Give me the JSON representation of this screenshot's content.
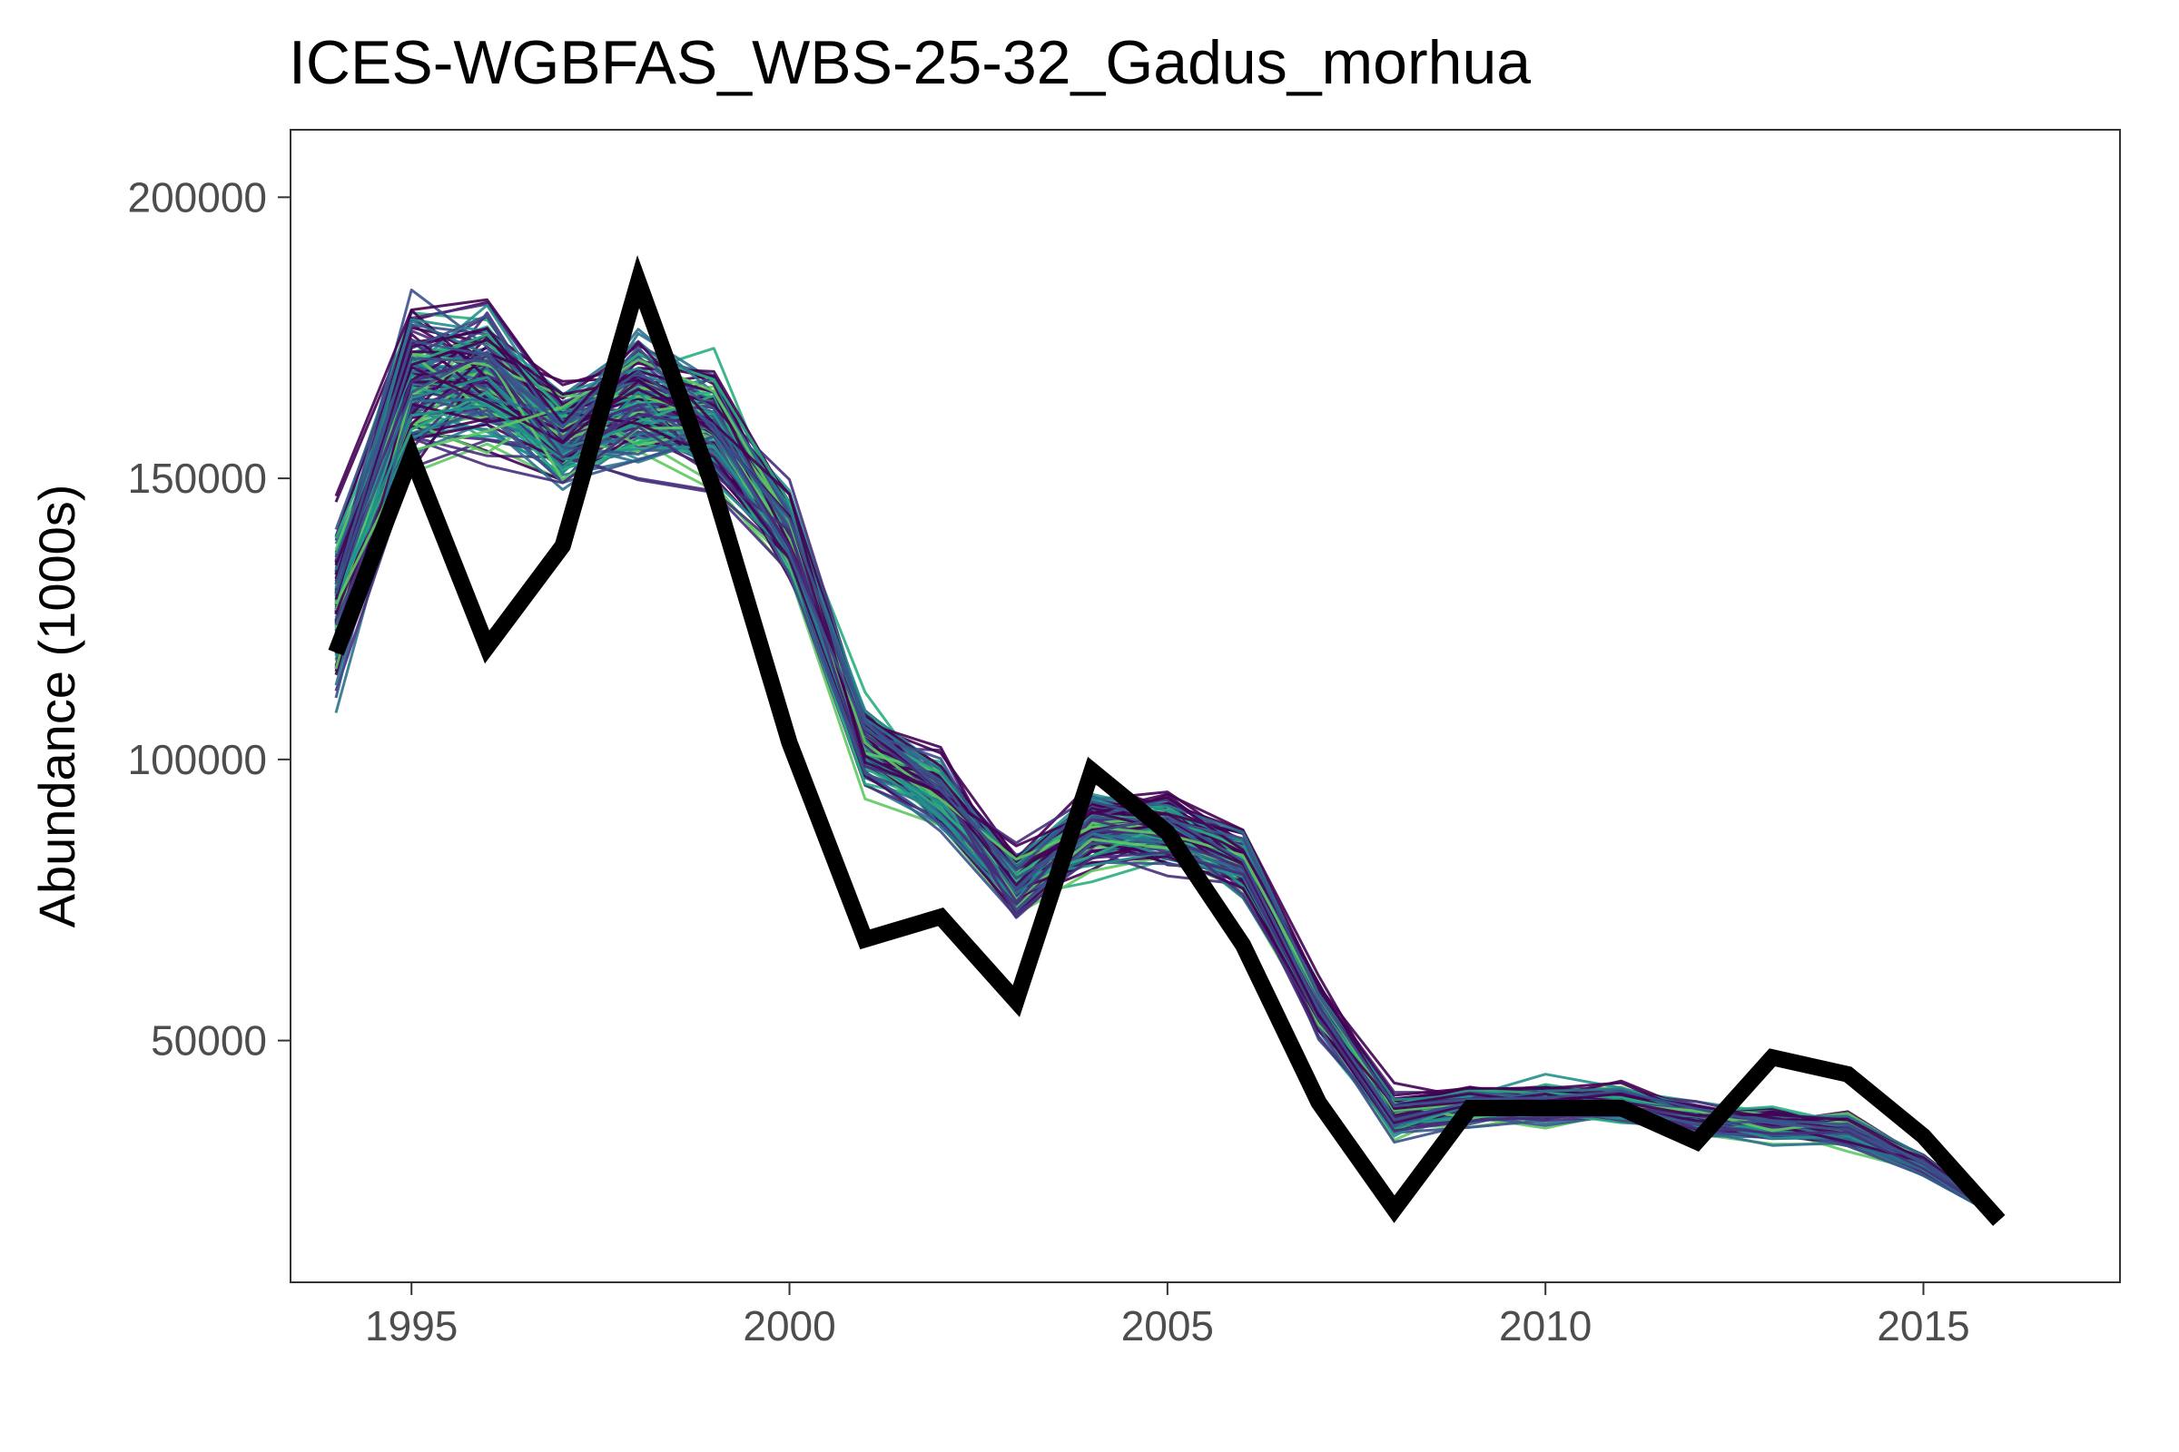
{
  "chart_data": {
    "type": "line",
    "title": "ICES-WGBFAS_WBS-25-32_Gadus_morhua",
    "xlabel": "",
    "ylabel": "Abundance (1000s)",
    "xlim": [
      1993.4,
      2017.6
    ],
    "ylim": [
      7000,
      212000
    ],
    "x_ticks": [
      1995,
      2000,
      2005,
      2010,
      2015
    ],
    "x_tick_labels": [
      "1995",
      "2000",
      "2005",
      "2010",
      "2015"
    ],
    "y_ticks": [
      50000,
      100000,
      150000,
      200000
    ],
    "y_tick_labels": [
      "50000",
      "100000",
      "150000",
      "200000"
    ],
    "grid": false,
    "legend": "none",
    "x": [
      1994,
      1995,
      1996,
      1997,
      1998,
      1999,
      2000,
      2001,
      2002,
      2003,
      2004,
      2005,
      2006,
      2007,
      2008,
      2009,
      2010,
      2011,
      2012,
      2013,
      2014,
      2015,
      2016
    ],
    "observed": {
      "color": "#000000",
      "values": [
        119000,
        154000,
        120000,
        138000,
        185000,
        148000,
        103000,
        68000,
        72000,
        57000,
        98000,
        87000,
        67000,
        39000,
        20000,
        38000,
        38000,
        38000,
        32000,
        47000,
        44000,
        33000,
        18000
      ]
    },
    "ensemble": {
      "count": 140,
      "palette": [
        "#440154",
        "#472d7b",
        "#3b528b",
        "#2c728e",
        "#21918c",
        "#28ae80",
        "#5ec962"
      ],
      "mean": [
        128000,
        167000,
        168000,
        158000,
        164000,
        160000,
        140000,
        103000,
        94000,
        78000,
        88000,
        88000,
        82000,
        56000,
        37000,
        39000,
        39000,
        39000,
        36000,
        35000,
        34000,
        28000,
        19000
      ],
      "spread": [
        13000,
        12000,
        11000,
        8000,
        9000,
        9000,
        7000,
        6000,
        6000,
        5000,
        6000,
        6000,
        5000,
        4000,
        3000,
        3000,
        3000,
        3000,
        2500,
        2500,
        2500,
        1500,
        500
      ]
    }
  }
}
